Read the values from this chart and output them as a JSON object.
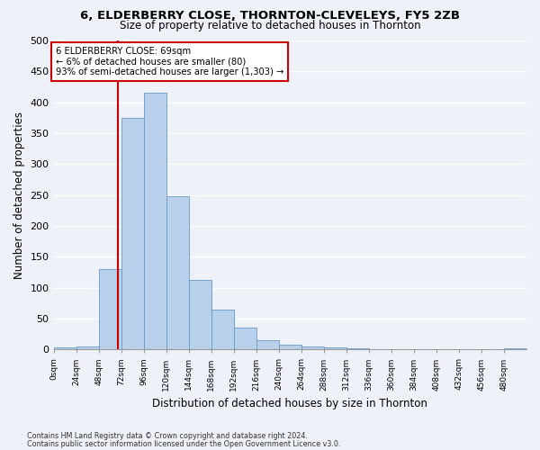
{
  "title1": "6, ELDERBERRY CLOSE, THORNTON-CLEVELEYS, FY5 2ZB",
  "title2": "Size of property relative to detached houses in Thornton",
  "xlabel": "Distribution of detached houses by size in Thornton",
  "ylabel": "Number of detached properties",
  "bin_labels": [
    "0sqm",
    "24sqm",
    "48sqm",
    "72sqm",
    "96sqm",
    "120sqm",
    "144sqm",
    "168sqm",
    "192sqm",
    "216sqm",
    "240sqm",
    "264sqm",
    "288sqm",
    "312sqm",
    "336sqm",
    "360sqm",
    "384sqm",
    "408sqm",
    "432sqm",
    "456sqm",
    "480sqm"
  ],
  "bar_heights": [
    3,
    5,
    130,
    375,
    415,
    248,
    112,
    65,
    35,
    15,
    8,
    5,
    4,
    2,
    1,
    0,
    0,
    0,
    0,
    0,
    2
  ],
  "bar_color": "#b8d0ea",
  "bar_edge_color": "#6699cc",
  "vline_color": "#cc0000",
  "annotation_text": "6 ELDERBERRY CLOSE: 69sqm\n← 6% of detached houses are smaller (80)\n93% of semi-detached houses are larger (1,303) →",
  "annotation_box_color": "#ffffff",
  "annotation_box_edge_color": "#cc0000",
  "footer1": "Contains HM Land Registry data © Crown copyright and database right 2024.",
  "footer2": "Contains public sector information licensed under the Open Government Licence v3.0.",
  "ylim": [
    0,
    500
  ],
  "background_color": "#eef2f8"
}
